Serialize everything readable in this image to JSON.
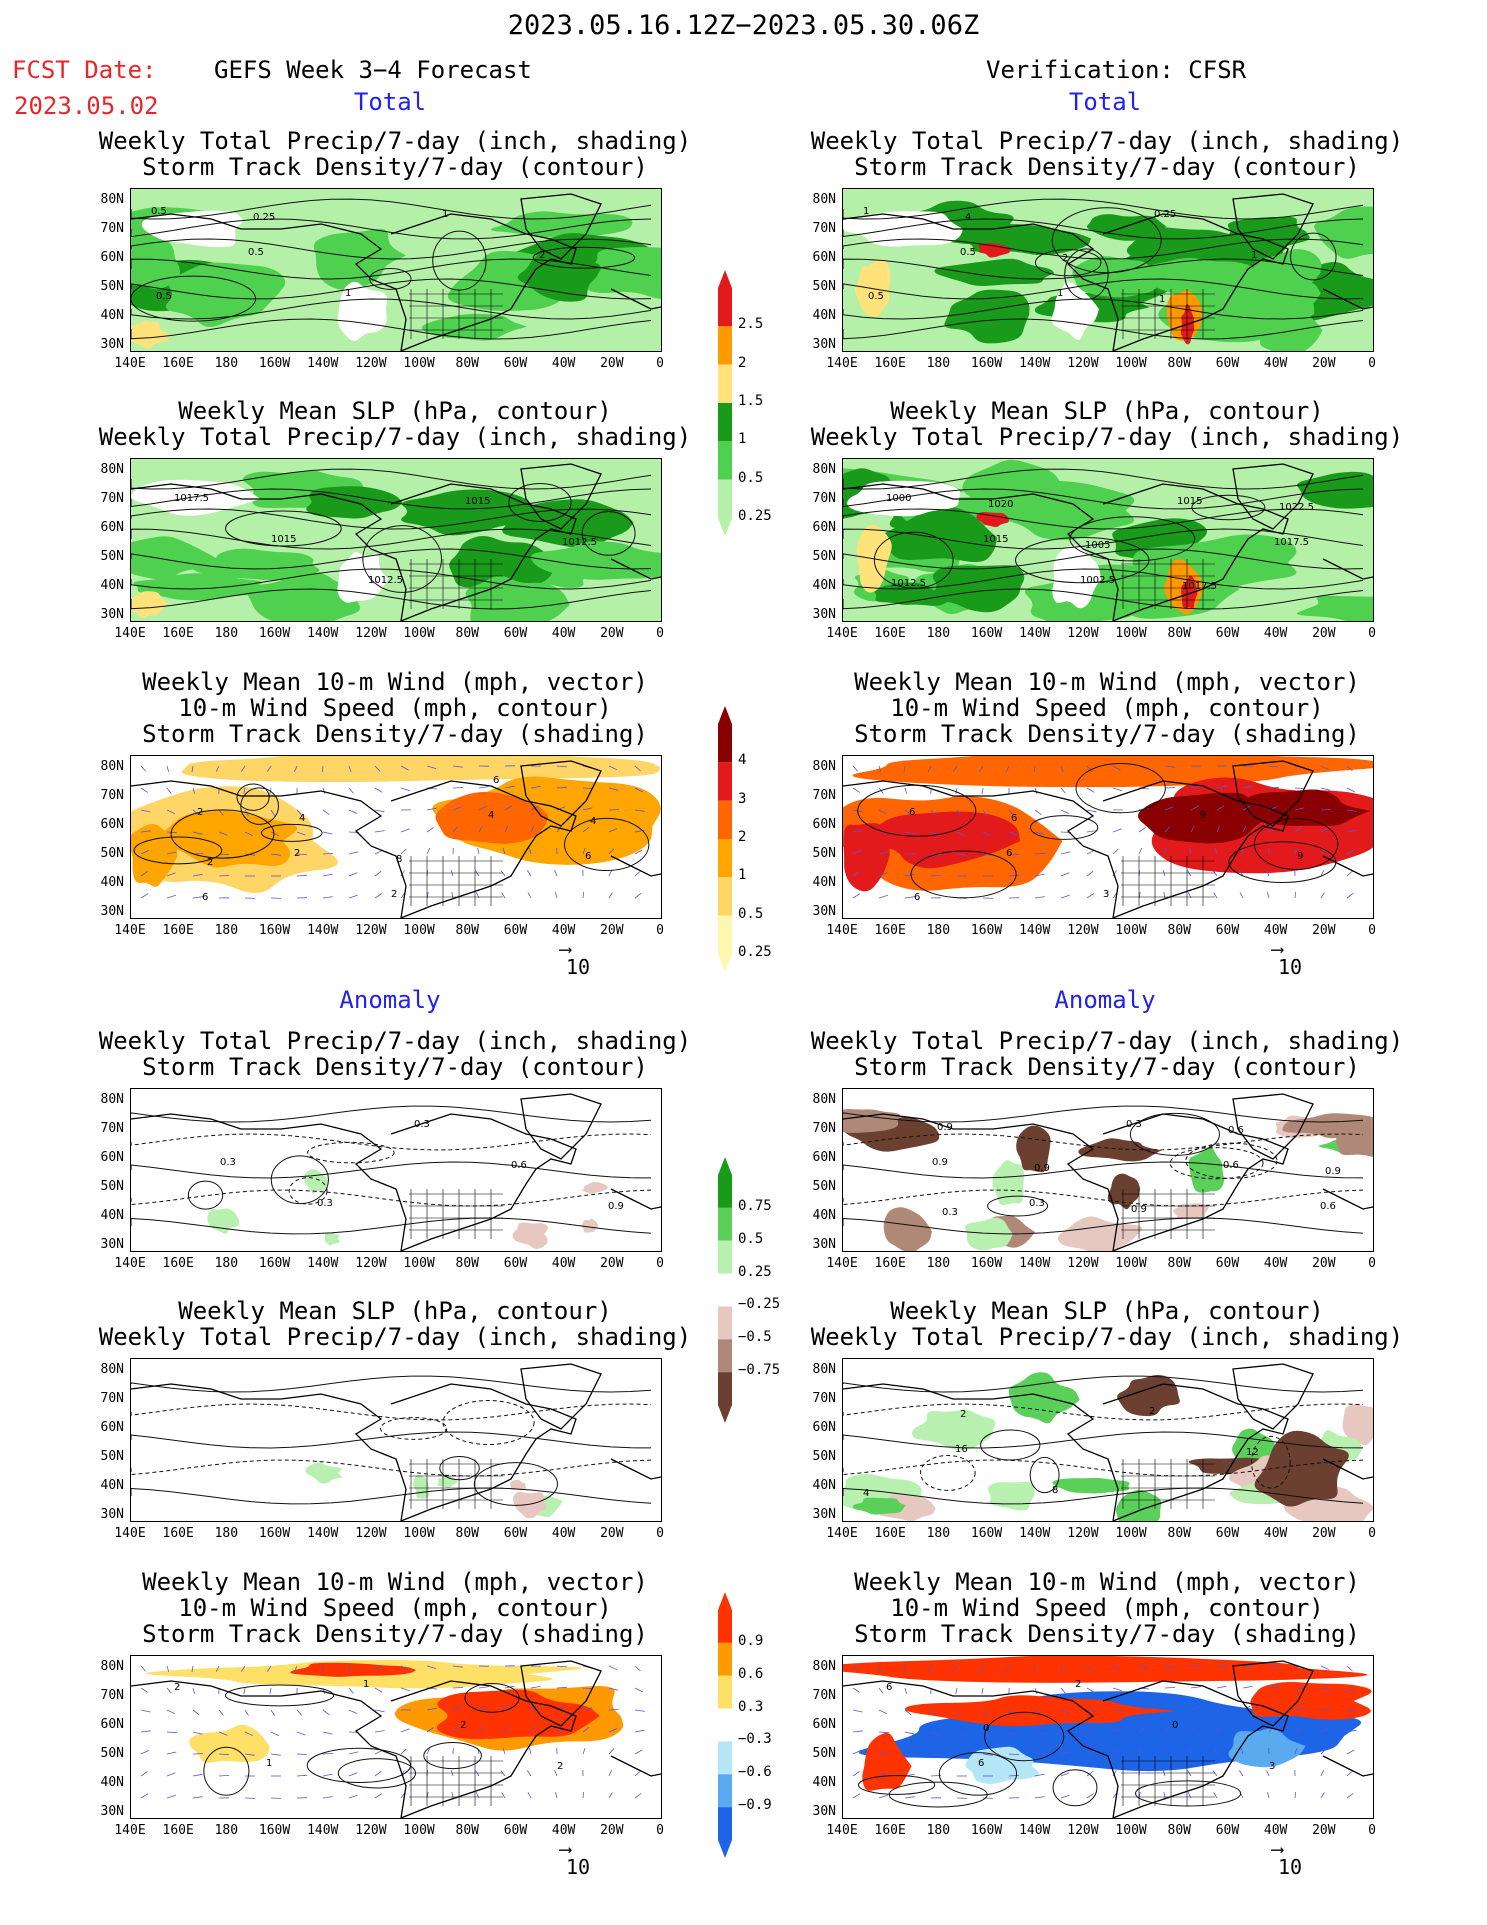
{
  "header": {
    "date_range": "2023.05.16.12Z−2023.05.30.06Z",
    "fcst_label": "FCST Date:",
    "fcst_date": "2023.05.02",
    "left_title": "GEFS Week 3−4 Forecast",
    "right_title": "Verification: CFSR",
    "total_label": "Total",
    "anomaly_label": "Anomaly"
  },
  "panel_titles": {
    "precip_storm": [
      "Weekly Total Precip/7-day (inch, shading)",
      "Storm Track Density/7-day (contour)"
    ],
    "slp_precip": [
      "Weekly Mean SLP (hPa, contour)",
      "Weekly Total Precip/7-day (inch, shading)"
    ],
    "wind_storm": [
      "Weekly Mean 10-m Wind (mph, vector)",
      "10-m Wind Speed (mph, contour)",
      "Storm Track Density/7-day (shading)"
    ]
  },
  "axes": {
    "lat_labels": [
      "80N",
      "70N",
      "60N",
      "50N",
      "40N",
      "30N"
    ],
    "lon_labels": [
      "140E",
      "160E",
      "180",
      "160W",
      "140W",
      "120W",
      "100W",
      "80W",
      "60W",
      "40W",
      "20W",
      "0"
    ]
  },
  "vector_ref": "10",
  "colorbars": {
    "total_precip": {
      "labels": [
        "2.5",
        "2",
        "1.5",
        "1",
        "0.5",
        "0.25"
      ],
      "colors": [
        "#e31a1c",
        "#ff9900",
        "#ffe37a",
        "#1a9a1a",
        "#4fd04f",
        "#b4f0a8"
      ]
    },
    "total_storm": {
      "labels": [
        "4",
        "3",
        "2",
        "1",
        "0.5",
        "0.25"
      ],
      "colors": [
        "#8a0000",
        "#e31a1c",
        "#ff6600",
        "#ffa500",
        "#ffd666",
        "#fff7b0"
      ]
    },
    "anom_precip": {
      "labels": [
        "0.75",
        "0.5",
        "0.25",
        "−0.25",
        "−0.5",
        "−0.75"
      ],
      "colors": [
        "#1a9a1a",
        "#5ad05a",
        "#b8f0b0",
        "#ffffff",
        "#e6c8c0",
        "#b08878",
        "#6b4030"
      ]
    },
    "anom_storm": {
      "labels": [
        "0.9",
        "0.6",
        "0.3",
        "−0.3",
        "−0.6",
        "−0.9"
      ],
      "colors": [
        "#ff3300",
        "#ff9900",
        "#ffe066",
        "#ffffff",
        "#b4e6f5",
        "#5aaaf0",
        "#1e64e6"
      ]
    }
  },
  "contour_labels": {
    "p1l": [
      "0.5",
      "0.5",
      "1",
      "1",
      "2",
      "0.5",
      "0.25"
    ],
    "p1r": [
      "1",
      "0.5",
      "1",
      "0.25",
      "1",
      "0.5",
      "4",
      "2",
      "1"
    ],
    "p2l": [
      "1017.5",
      "1015",
      "1012.5",
      "1015",
      "1012.5"
    ],
    "p2r": [
      "1000",
      "1015",
      "1002.5",
      "1015",
      "1017.5",
      "1012.5",
      "1020",
      "1005",
      "1017.5",
      "1022.5"
    ],
    "p3l": [
      "2",
      "2",
      "2",
      "4",
      "6",
      "6",
      "4",
      "8",
      "6",
      "4",
      "2"
    ],
    "p3r": [
      "6",
      "6",
      "3",
      "9",
      "9",
      "6",
      "6"
    ],
    "p4l": [
      "0.3",
      "0.3",
      "0.3",
      "0.6",
      "0.9"
    ],
    "p4r": [
      "0.9",
      "0.3",
      "0.3",
      "0.6",
      "0.6",
      "0.9",
      "0.9",
      "0.9",
      "0.6",
      "0.9",
      "0.3"
    ],
    "p5l": [],
    "p5r": [
      "16",
      "8",
      "2",
      "12",
      "4",
      "2"
    ],
    "p6l": [
      "1",
      "1",
      "2",
      "2",
      "2"
    ],
    "p6r": [
      "6",
      "2",
      "0",
      "3",
      "6",
      "0"
    ]
  }
}
